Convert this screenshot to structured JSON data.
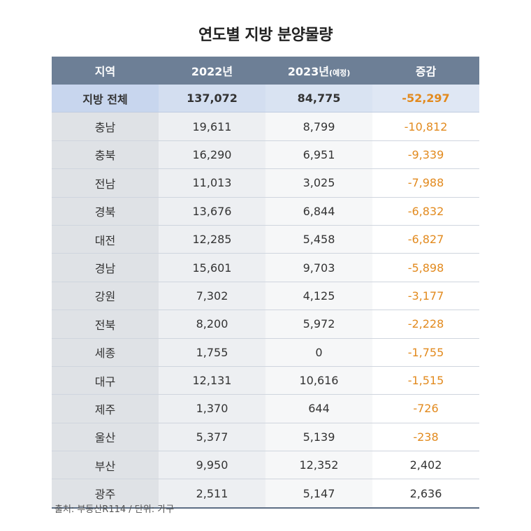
{
  "title": "연도별 지방 분양물량",
  "colors": {
    "header": "#6d7f96",
    "negative": "#e28a1e",
    "total_row": "#d3def0"
  },
  "chart_data": {
    "type": "table",
    "title": "연도별 지방 분양물량",
    "columns": [
      "지역",
      "2022년",
      "2023년",
      "증감"
    ],
    "column_sub": [
      "",
      "",
      "(예정)",
      ""
    ],
    "rows": [
      [
        "지방 전체",
        "137,072",
        "84,775",
        "-52,297"
      ],
      [
        "충남",
        "19,611",
        "8,799",
        "-10,812"
      ],
      [
        "충북",
        "16,290",
        "6,951",
        "-9,339"
      ],
      [
        "전남",
        "11,013",
        "3,025",
        "-7,988"
      ],
      [
        "경북",
        "13,676",
        "6,844",
        "-6,832"
      ],
      [
        "대전",
        "12,285",
        "5,458",
        "-6,827"
      ],
      [
        "경남",
        "15,601",
        "9,703",
        "-5,898"
      ],
      [
        "강원",
        "7,302",
        "4,125",
        "-3,177"
      ],
      [
        "전북",
        "8,200",
        "5,972",
        "-2,228"
      ],
      [
        "세종",
        "1,755",
        "0",
        "-1,755"
      ],
      [
        "대구",
        "12,131",
        "10,616",
        "-1,515"
      ],
      [
        "제주",
        "1,370",
        "644",
        "-726"
      ],
      [
        "울산",
        "5,377",
        "5,139",
        "-238"
      ],
      [
        "부산",
        "9,950",
        "12,352",
        "2,402"
      ],
      [
        "광주",
        "2,511",
        "5,147",
        "2,636"
      ]
    ]
  },
  "source": "출처: 부동산R114 / 단위: 가구"
}
